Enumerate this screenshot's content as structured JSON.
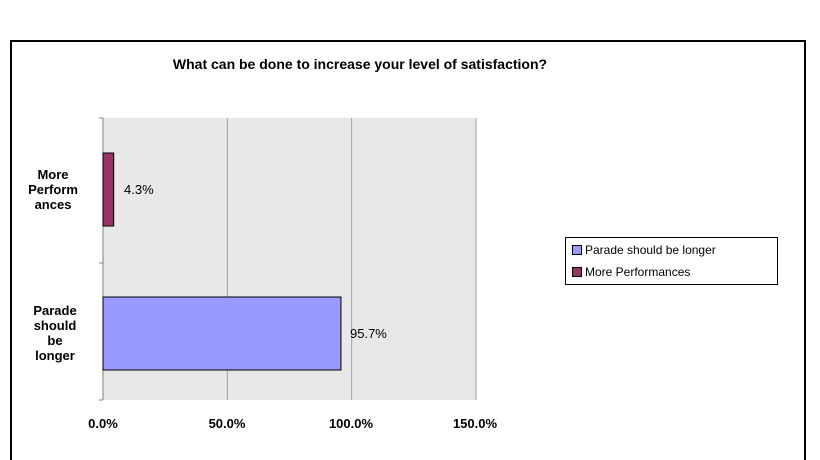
{
  "chart_data": {
    "type": "bar",
    "orientation": "horizontal",
    "title": "What can be done to increase your level of satisfaction?",
    "categories": [
      "More\nPerform\nances",
      "Parade\nshould\nbe\nlonger"
    ],
    "values": [
      4.3,
      95.7
    ],
    "value_labels": [
      "4.3%",
      "95.7%"
    ],
    "bar_colors": [
      "#993366",
      "#9999ff"
    ],
    "xlim": [
      0,
      150
    ],
    "x_ticks": [
      0,
      50,
      100,
      150
    ],
    "x_tick_labels": [
      "0.0%",
      "50.0%",
      "100.0%",
      "150.0%"
    ],
    "grid": true,
    "legend_position": "right",
    "legend": [
      {
        "label": "Parade should be longer",
        "color": "#9999ff"
      },
      {
        "label": "More Performances",
        "color": "#993366"
      }
    ],
    "plot_background": "#e8e8e8"
  }
}
